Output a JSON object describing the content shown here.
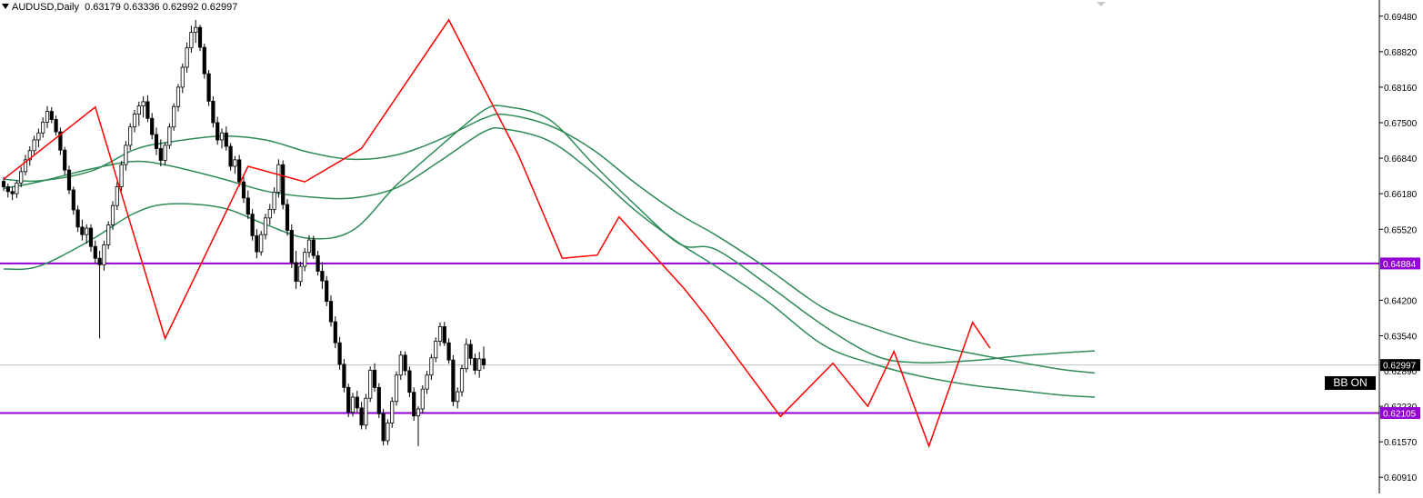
{
  "header": {
    "symbol_timeframe": "AUDUSD,Daily",
    "ohlc": "0.63179 0.63336 0.62992 0.62997"
  },
  "indicator_badge": "BB ON",
  "colors": {
    "background": "#ffffff",
    "bull_candle": "#ffffff",
    "bear_candle": "#000000",
    "wick": "#000000",
    "bollinger": "#2e8b57",
    "zigzag": "#ff0000",
    "level_line": "#9400d3",
    "price_line": "#c0c0c0"
  },
  "chart_data": {
    "type": "candlestick",
    "symbol": "AUDUSD",
    "timeframe": "Daily",
    "y_axis": {
      "range": [
        0.6061,
        0.6978
      ],
      "ticks": [
        0.6948,
        0.6882,
        0.6816,
        0.675,
        0.6684,
        0.6618,
        0.6552,
        0.642,
        0.6354,
        0.6223,
        0.6157,
        0.6091
      ],
      "tick_labels": [
        "0.69480",
        "0.68820",
        "0.68160",
        "0.67500",
        "0.66840",
        "0.66180",
        "0.65520",
        "0.64200",
        "0.63540",
        "0.62230",
        "0.61570",
        "0.60910"
      ],
      "partial_label": "0.62890"
    },
    "current_price": {
      "value": 0.62997,
      "label": "0.62997"
    },
    "horizontal_levels": [
      {
        "value": 0.64884,
        "label": "0.64884"
      },
      {
        "value": 0.62105,
        "label": "0.62105"
      }
    ],
    "bollinger_bands": {
      "upper": [
        [
          0,
          0.6478
        ],
        [
          8,
          0.6483
        ],
        [
          20,
          0.6532
        ],
        [
          30,
          0.6582
        ],
        [
          38,
          0.6599
        ],
        [
          50,
          0.6592
        ],
        [
          60,
          0.6561
        ],
        [
          70,
          0.6535
        ],
        [
          80,
          0.655
        ],
        [
          90,
          0.6634
        ],
        [
          100,
          0.6706
        ],
        [
          110,
          0.6773
        ],
        [
          115,
          0.678
        ],
        [
          125,
          0.6756
        ],
        [
          135,
          0.6674
        ],
        [
          145,
          0.6595
        ],
        [
          155,
          0.6524
        ],
        [
          163,
          0.6515
        ],
        [
          175,
          0.6449
        ],
        [
          188,
          0.6372
        ],
        [
          200,
          0.6316
        ],
        [
          210,
          0.6304
        ],
        [
          222,
          0.6308
        ],
        [
          232,
          0.6316
        ],
        [
          242,
          0.6322
        ],
        [
          250,
          0.6326
        ]
      ],
      "middle": [
        [
          0,
          0.6628
        ],
        [
          8,
          0.664
        ],
        [
          20,
          0.6664
        ],
        [
          30,
          0.6678
        ],
        [
          38,
          0.667
        ],
        [
          50,
          0.6646
        ],
        [
          60,
          0.6623
        ],
        [
          70,
          0.6612
        ],
        [
          80,
          0.661
        ],
        [
          90,
          0.6629
        ],
        [
          100,
          0.6679
        ],
        [
          110,
          0.6733
        ],
        [
          115,
          0.6738
        ],
        [
          125,
          0.6716
        ],
        [
          135,
          0.6657
        ],
        [
          145,
          0.6585
        ],
        [
          155,
          0.6525
        ],
        [
          163,
          0.6484
        ],
        [
          175,
          0.6418
        ],
        [
          188,
          0.6336
        ],
        [
          200,
          0.63
        ],
        [
          210,
          0.6279
        ],
        [
          222,
          0.6262
        ],
        [
          232,
          0.6253
        ],
        [
          242,
          0.6244
        ],
        [
          250,
          0.624
        ]
      ],
      "lower": [
        [
          0,
          0.6645
        ],
        [
          8,
          0.6642
        ],
        [
          20,
          0.666
        ],
        [
          30,
          0.67
        ],
        [
          38,
          0.6714
        ],
        [
          50,
          0.6725
        ],
        [
          60,
          0.6718
        ],
        [
          70,
          0.6695
        ],
        [
          80,
          0.6682
        ],
        [
          90,
          0.669
        ],
        [
          100,
          0.6719
        ],
        [
          110,
          0.6758
        ],
        [
          115,
          0.6765
        ],
        [
          125,
          0.6745
        ],
        [
          135,
          0.67
        ],
        [
          145,
          0.6636
        ],
        [
          155,
          0.6579
        ],
        [
          163,
          0.6542
        ],
        [
          175,
          0.6479
        ],
        [
          188,
          0.6405
        ],
        [
          200,
          0.6366
        ],
        [
          210,
          0.6341
        ],
        [
          222,
          0.6321
        ],
        [
          232,
          0.6306
        ],
        [
          242,
          0.6292
        ],
        [
          250,
          0.6285
        ]
      ]
    },
    "zigzag": [
      [
        0,
        0.6645
      ],
      [
        21,
        0.6779
      ],
      [
        37,
        0.6349
      ],
      [
        56,
        0.6669
      ],
      [
        69,
        0.664
      ],
      [
        82,
        0.6702
      ],
      [
        102,
        0.6941
      ],
      [
        118,
        0.6689
      ],
      [
        128,
        0.6498
      ],
      [
        136,
        0.6504
      ],
      [
        141,
        0.6575
      ],
      [
        156,
        0.6441
      ],
      [
        161,
        0.639
      ],
      [
        178,
        0.6204
      ],
      [
        190,
        0.6303
      ],
      [
        198,
        0.6223
      ],
      [
        204,
        0.6325
      ],
      [
        212,
        0.6149
      ],
      [
        222,
        0.6379
      ],
      [
        226,
        0.6331
      ]
    ],
    "candles": [
      [
        0.6641,
        0.6649,
        0.6623,
        0.6631
      ],
      [
        0.6631,
        0.6637,
        0.6611,
        0.6622
      ],
      [
        0.6622,
        0.6631,
        0.6606,
        0.6618
      ],
      [
        0.6618,
        0.6643,
        0.661,
        0.6638
      ],
      [
        0.6638,
        0.6668,
        0.663,
        0.6659
      ],
      [
        0.6659,
        0.669,
        0.6652,
        0.6681
      ],
      [
        0.6681,
        0.6706,
        0.667,
        0.6698
      ],
      [
        0.6698,
        0.6726,
        0.669,
        0.6718
      ],
      [
        0.6718,
        0.6739,
        0.6704,
        0.6731
      ],
      [
        0.6731,
        0.676,
        0.6722,
        0.6751
      ],
      [
        0.6751,
        0.6781,
        0.674,
        0.6771
      ],
      [
        0.6771,
        0.6779,
        0.6749,
        0.6756
      ],
      [
        0.6756,
        0.6763,
        0.6726,
        0.6733
      ],
      [
        0.6733,
        0.6741,
        0.669,
        0.6699
      ],
      [
        0.6699,
        0.6705,
        0.6653,
        0.6662
      ],
      [
        0.6662,
        0.667,
        0.6617,
        0.6625
      ],
      [
        0.6625,
        0.6631,
        0.6579,
        0.6588
      ],
      [
        0.6588,
        0.6596,
        0.6547,
        0.6556
      ],
      [
        0.6556,
        0.657,
        0.6531,
        0.6542
      ],
      [
        0.6542,
        0.6561,
        0.6525,
        0.6554
      ],
      [
        0.6554,
        0.6561,
        0.651,
        0.652
      ],
      [
        0.652,
        0.6531,
        0.6489,
        0.6498
      ],
      [
        0.6498,
        0.6512,
        0.6349,
        0.6486
      ],
      [
        0.6486,
        0.6531,
        0.6475,
        0.6523
      ],
      [
        0.6523,
        0.6567,
        0.6515,
        0.656
      ],
      [
        0.656,
        0.6604,
        0.6551,
        0.6596
      ],
      [
        0.6596,
        0.664,
        0.6588,
        0.6631
      ],
      [
        0.6631,
        0.6679,
        0.6623,
        0.6672
      ],
      [
        0.6672,
        0.6716,
        0.6661,
        0.6708
      ],
      [
        0.6708,
        0.6749,
        0.6699,
        0.6742
      ],
      [
        0.6742,
        0.6774,
        0.6732,
        0.6766
      ],
      [
        0.6766,
        0.6789,
        0.6744,
        0.6781
      ],
      [
        0.6781,
        0.6799,
        0.676,
        0.6789
      ],
      [
        0.6789,
        0.6801,
        0.6751,
        0.6758
      ],
      [
        0.6758,
        0.6768,
        0.6719,
        0.6728
      ],
      [
        0.6728,
        0.6741,
        0.669,
        0.6702
      ],
      [
        0.6702,
        0.6719,
        0.6669,
        0.668
      ],
      [
        0.668,
        0.6713,
        0.6671,
        0.6708
      ],
      [
        0.6708,
        0.6749,
        0.6701,
        0.6742
      ],
      [
        0.6742,
        0.6786,
        0.6735,
        0.678
      ],
      [
        0.678,
        0.6822,
        0.6771,
        0.6816
      ],
      [
        0.6816,
        0.686,
        0.6805,
        0.6853
      ],
      [
        0.6853,
        0.6899,
        0.6843,
        0.6889
      ],
      [
        0.6889,
        0.693,
        0.688,
        0.6918
      ],
      [
        0.6918,
        0.6941,
        0.6898,
        0.6927
      ],
      [
        0.6927,
        0.6932,
        0.6883,
        0.689
      ],
      [
        0.689,
        0.6897,
        0.6832,
        0.6841
      ],
      [
        0.6841,
        0.6848,
        0.6781,
        0.679
      ],
      [
        0.679,
        0.6799,
        0.6741,
        0.675
      ],
      [
        0.675,
        0.6761,
        0.6709,
        0.6718
      ],
      [
        0.6718,
        0.6739,
        0.6702,
        0.6731
      ],
      [
        0.6731,
        0.6743,
        0.6698,
        0.6706
      ],
      [
        0.6706,
        0.6712,
        0.6661,
        0.6669
      ],
      [
        0.6669,
        0.6688,
        0.6655,
        0.6681
      ],
      [
        0.6681,
        0.669,
        0.6631,
        0.664
      ],
      [
        0.664,
        0.6653,
        0.6601,
        0.661
      ],
      [
        0.661,
        0.6624,
        0.6571,
        0.658
      ],
      [
        0.658,
        0.659,
        0.6531,
        0.654
      ],
      [
        0.654,
        0.6552,
        0.6498,
        0.651
      ],
      [
        0.651,
        0.6549,
        0.6503,
        0.6542
      ],
      [
        0.6542,
        0.6581,
        0.6533,
        0.6573
      ],
      [
        0.6573,
        0.6599,
        0.656,
        0.6589
      ],
      [
        0.6589,
        0.663,
        0.6581,
        0.6621
      ],
      [
        0.6621,
        0.6682,
        0.6611,
        0.6672
      ],
      [
        0.6672,
        0.668,
        0.6589,
        0.6598
      ],
      [
        0.6598,
        0.6608,
        0.654,
        0.655
      ],
      [
        0.655,
        0.6561,
        0.648,
        0.649
      ],
      [
        0.649,
        0.6512,
        0.6441,
        0.6455
      ],
      [
        0.6455,
        0.6492,
        0.6446,
        0.6483
      ],
      [
        0.6483,
        0.6517,
        0.6474,
        0.6509
      ],
      [
        0.6509,
        0.6541,
        0.6499,
        0.6532
      ],
      [
        0.6532,
        0.654,
        0.6497,
        0.6503
      ],
      [
        0.6503,
        0.6512,
        0.6466,
        0.6474
      ],
      [
        0.6474,
        0.6491,
        0.6441,
        0.6456
      ],
      [
        0.6456,
        0.6465,
        0.6409,
        0.6418
      ],
      [
        0.6418,
        0.6429,
        0.6371,
        0.638
      ],
      [
        0.638,
        0.639,
        0.6331,
        0.6341
      ],
      [
        0.6341,
        0.6352,
        0.6291,
        0.6301
      ],
      [
        0.6301,
        0.6311,
        0.6249,
        0.6258
      ],
      [
        0.6258,
        0.6265,
        0.6203,
        0.6212
      ],
      [
        0.6212,
        0.6248,
        0.6204,
        0.624
      ],
      [
        0.624,
        0.6252,
        0.6212,
        0.622
      ],
      [
        0.622,
        0.6231,
        0.618,
        0.6188
      ],
      [
        0.6188,
        0.6246,
        0.618,
        0.6238
      ],
      [
        0.6238,
        0.6297,
        0.6231,
        0.629
      ],
      [
        0.629,
        0.6303,
        0.625,
        0.6258
      ],
      [
        0.6258,
        0.6266,
        0.6201,
        0.6209
      ],
      [
        0.6209,
        0.6218,
        0.615,
        0.6159
      ],
      [
        0.6159,
        0.6199,
        0.6151,
        0.6192
      ],
      [
        0.6192,
        0.624,
        0.6183,
        0.6232
      ],
      [
        0.6232,
        0.6288,
        0.6224,
        0.6281
      ],
      [
        0.6281,
        0.6326,
        0.6272,
        0.6318
      ],
      [
        0.6318,
        0.6325,
        0.628,
        0.6289
      ],
      [
        0.6289,
        0.6297,
        0.624,
        0.6249
      ],
      [
        0.6249,
        0.6258,
        0.6196,
        0.6205
      ],
      [
        0.6205,
        0.6223,
        0.6149,
        0.6218
      ],
      [
        0.6218,
        0.6262,
        0.621,
        0.6255
      ],
      [
        0.6255,
        0.6289,
        0.6246,
        0.6281
      ],
      [
        0.6281,
        0.632,
        0.6272,
        0.6313
      ],
      [
        0.6313,
        0.6351,
        0.6305,
        0.6344
      ],
      [
        0.6344,
        0.6379,
        0.6335,
        0.6371
      ],
      [
        0.6371,
        0.638,
        0.6335,
        0.6341
      ],
      [
        0.6341,
        0.6349,
        0.6302,
        0.6309
      ],
      [
        0.6309,
        0.6318,
        0.6223,
        0.6232
      ],
      [
        0.6232,
        0.6258,
        0.6219,
        0.625
      ],
      [
        0.625,
        0.63,
        0.6241,
        0.6293
      ],
      [
        0.6293,
        0.6349,
        0.6286,
        0.6338
      ],
      [
        0.6338,
        0.6347,
        0.63,
        0.6312
      ],
      [
        0.6312,
        0.6321,
        0.6282,
        0.629
      ],
      [
        0.629,
        0.6324,
        0.6276,
        0.6311
      ],
      [
        0.6311,
        0.6334,
        0.6292,
        0.63
      ]
    ]
  }
}
